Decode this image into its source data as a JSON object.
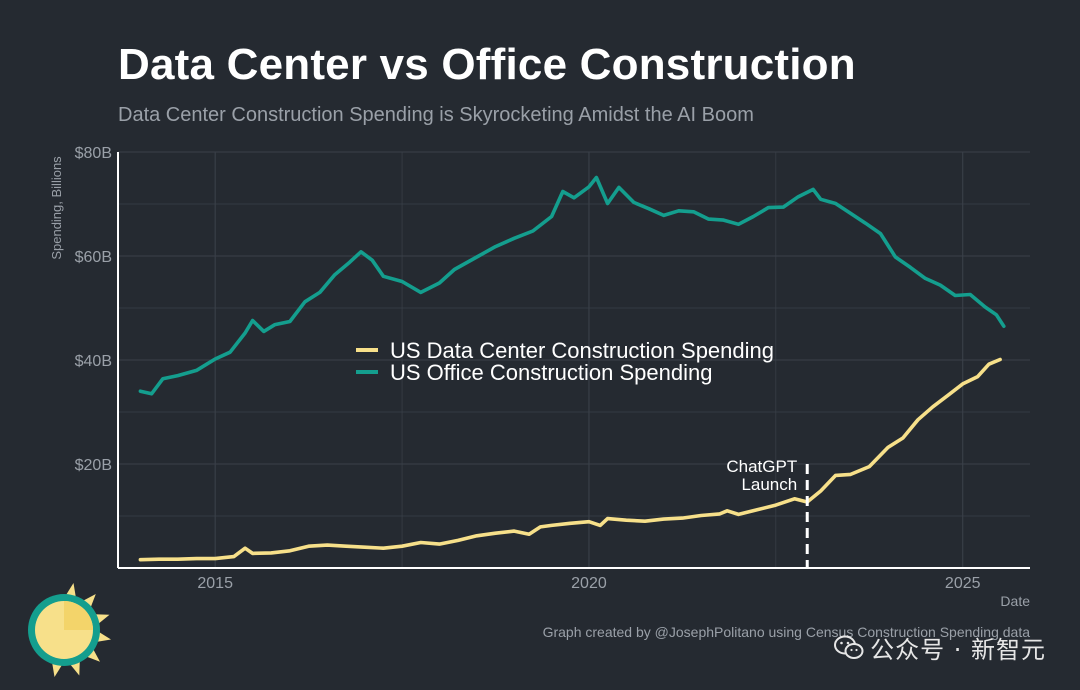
{
  "header": {
    "title": "Data Center vs Office Construction",
    "subtitle": "Data Center Construction Spending is Skyrocketing Amidst the AI Boom"
  },
  "footer": {
    "credit": "Graph created by @JosephPolitano using Census Construction Spending data",
    "watermark": "公众号 · 新智元"
  },
  "colors": {
    "background": "#252a31",
    "data_center": "#f7e08a",
    "office": "#149e8e",
    "grid": "#3a4049",
    "axis": "#ffffff",
    "annotation": "#ffffff"
  },
  "chart_data": {
    "type": "line",
    "ylabel": "Spending, Billions",
    "xlabel": "Date",
    "ylim": [
      0,
      80
    ],
    "xlim": [
      2013.7,
      2025.9
    ],
    "y_ticks": [
      20,
      40,
      60,
      80
    ],
    "y_tick_labels": [
      "$20B",
      "$40B",
      "$60B",
      "$80B"
    ],
    "x_ticks": [
      2015,
      2020,
      2025
    ],
    "x_tick_labels": [
      "2015",
      "2020",
      "2025"
    ],
    "grid": true,
    "legend_position": "center-left",
    "annotation": {
      "x": 2022.92,
      "y_from": 0,
      "y_to": 20,
      "text_line1": "ChatGPT",
      "text_line2": "Launch"
    },
    "series": [
      {
        "name": "US Data Center Construction Spending",
        "color_key": "data_center",
        "points": [
          [
            2014.0,
            1.6
          ],
          [
            2014.25,
            1.7
          ],
          [
            2014.5,
            1.7
          ],
          [
            2014.75,
            1.8
          ],
          [
            2015.0,
            1.8
          ],
          [
            2015.25,
            2.2
          ],
          [
            2015.4,
            3.8
          ],
          [
            2015.5,
            2.8
          ],
          [
            2015.75,
            2.9
          ],
          [
            2016.0,
            3.3
          ],
          [
            2016.25,
            4.2
          ],
          [
            2016.5,
            4.4
          ],
          [
            2016.75,
            4.2
          ],
          [
            2017.0,
            4.0
          ],
          [
            2017.25,
            3.8
          ],
          [
            2017.5,
            4.2
          ],
          [
            2017.75,
            4.9
          ],
          [
            2018.0,
            4.6
          ],
          [
            2018.25,
            5.3
          ],
          [
            2018.5,
            6.2
          ],
          [
            2018.75,
            6.7
          ],
          [
            2019.0,
            7.1
          ],
          [
            2019.2,
            6.5
          ],
          [
            2019.35,
            7.9
          ],
          [
            2019.5,
            8.2
          ],
          [
            2019.75,
            8.6
          ],
          [
            2020.0,
            8.9
          ],
          [
            2020.15,
            8.2
          ],
          [
            2020.25,
            9.5
          ],
          [
            2020.5,
            9.2
          ],
          [
            2020.75,
            9.0
          ],
          [
            2021.0,
            9.4
          ],
          [
            2021.25,
            9.6
          ],
          [
            2021.5,
            10.1
          ],
          [
            2021.75,
            10.4
          ],
          [
            2021.85,
            11.0
          ],
          [
            2022.0,
            10.3
          ],
          [
            2022.25,
            11.2
          ],
          [
            2022.5,
            12.1
          ],
          [
            2022.75,
            13.3
          ],
          [
            2022.92,
            12.7
          ],
          [
            2023.1,
            14.8
          ],
          [
            2023.3,
            17.8
          ],
          [
            2023.5,
            18.0
          ],
          [
            2023.75,
            19.5
          ],
          [
            2024.0,
            23.2
          ],
          [
            2024.2,
            25.0
          ],
          [
            2024.4,
            28.5
          ],
          [
            2024.6,
            31.0
          ],
          [
            2024.8,
            33.2
          ],
          [
            2025.0,
            35.4
          ],
          [
            2025.2,
            36.8
          ],
          [
            2025.35,
            39.2
          ],
          [
            2025.5,
            40.1
          ]
        ]
      },
      {
        "name": "US Office Construction Spending",
        "color_key": "office",
        "points": [
          [
            2014.0,
            34.0
          ],
          [
            2014.15,
            33.5
          ],
          [
            2014.3,
            36.4
          ],
          [
            2014.5,
            37.0
          ],
          [
            2014.75,
            38.0
          ],
          [
            2014.9,
            39.3
          ],
          [
            2015.0,
            40.2
          ],
          [
            2015.2,
            41.5
          ],
          [
            2015.4,
            45.2
          ],
          [
            2015.5,
            47.6
          ],
          [
            2015.65,
            45.5
          ],
          [
            2015.8,
            46.8
          ],
          [
            2016.0,
            47.4
          ],
          [
            2016.2,
            51.2
          ],
          [
            2016.4,
            53.0
          ],
          [
            2016.6,
            56.4
          ],
          [
            2016.8,
            58.8
          ],
          [
            2016.95,
            60.8
          ],
          [
            2017.1,
            59.2
          ],
          [
            2017.25,
            56.1
          ],
          [
            2017.5,
            55.1
          ],
          [
            2017.75,
            53.0
          ],
          [
            2018.0,
            54.8
          ],
          [
            2018.2,
            57.4
          ],
          [
            2018.5,
            59.8
          ],
          [
            2018.75,
            61.8
          ],
          [
            2019.0,
            63.4
          ],
          [
            2019.25,
            64.8
          ],
          [
            2019.5,
            67.6
          ],
          [
            2019.65,
            72.4
          ],
          [
            2019.8,
            71.2
          ],
          [
            2020.0,
            73.3
          ],
          [
            2020.1,
            75.1
          ],
          [
            2020.25,
            70.1
          ],
          [
            2020.4,
            73.2
          ],
          [
            2020.6,
            70.3
          ],
          [
            2020.8,
            69.1
          ],
          [
            2021.0,
            67.8
          ],
          [
            2021.2,
            68.7
          ],
          [
            2021.4,
            68.5
          ],
          [
            2021.6,
            67.1
          ],
          [
            2021.8,
            66.9
          ],
          [
            2022.0,
            66.1
          ],
          [
            2022.2,
            67.6
          ],
          [
            2022.4,
            69.3
          ],
          [
            2022.6,
            69.4
          ],
          [
            2022.8,
            71.4
          ],
          [
            2023.0,
            72.8
          ],
          [
            2023.1,
            70.9
          ],
          [
            2023.3,
            70.1
          ],
          [
            2023.5,
            68.2
          ],
          [
            2023.7,
            66.3
          ],
          [
            2023.9,
            64.3
          ],
          [
            2024.1,
            59.8
          ],
          [
            2024.3,
            57.8
          ],
          [
            2024.5,
            55.7
          ],
          [
            2024.7,
            54.4
          ],
          [
            2024.9,
            52.4
          ],
          [
            2025.1,
            52.6
          ],
          [
            2025.3,
            50.2
          ],
          [
            2025.45,
            48.7
          ],
          [
            2025.55,
            46.5
          ]
        ]
      }
    ]
  }
}
